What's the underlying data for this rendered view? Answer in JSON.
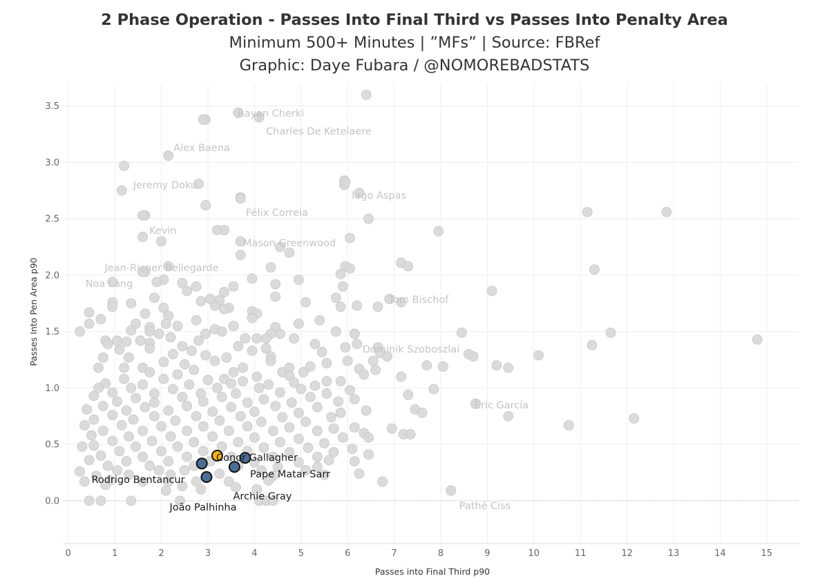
{
  "titles": [
    "2 Phase Operation - Passes Into Final Third vs Passes Into Penalty Area",
    "Minimum 500+ Minutes | ”MFs” | Source: FBRef",
    "Graphic: Daye Fubara / @NOMOREBADSTATS"
  ],
  "colors": {
    "background_point": "#d9d9d9",
    "background_point_stroke": "#c6c6c6",
    "highlight_blue": "#4b6f94",
    "highlight_orange": "#f2b51d",
    "highlight_stroke": "#111111",
    "grid": "#eeeeee"
  },
  "chart_data": {
    "type": "scatter",
    "xlabel": "Passes into Final Third p90",
    "ylabel": "Passes Into Pen Area p90",
    "xlim": [
      -0.1,
      15.7
    ],
    "ylim": [
      -0.38,
      3.7
    ],
    "xticks": [
      0,
      1,
      2,
      3,
      4,
      5,
      6,
      7,
      8,
      9,
      10,
      11,
      12,
      13,
      14,
      15
    ],
    "yticks": [
      0.0,
      0.5,
      1.0,
      1.5,
      2.0,
      2.5,
      3.0,
      3.5
    ],
    "grid": true,
    "labeled_background": [
      {
        "name": "Rayan Cherki",
        "x": 3.65,
        "y": 3.44
      },
      {
        "name": "Charles De Ketelaere",
        "x": 4.1,
        "y": 3.4
      },
      {
        "name": "Alex Baena",
        "x": 2.9,
        "y": 3.38
      },
      {
        "name": "Jeremy Doku",
        "x": 2.15,
        "y": 3.06
      },
      {
        "name": "Iago Aspas",
        "x": 5.95,
        "y": 2.83
      },
      {
        "name": "Félix Correia",
        "x": 3.7,
        "y": 2.68
      },
      {
        "name": "Kevin",
        "x": 1.6,
        "y": 2.53
      },
      {
        "name": "Mason Greenwood",
        "x": 3.2,
        "y": 2.4
      },
      {
        "name": "Jean-Ricner Bellegarde",
        "x": 2.0,
        "y": 2.3
      },
      {
        "name": "Noa Lang",
        "x": 1.6,
        "y": 2.03
      },
      {
        "name": "Tom Bischof",
        "x": 6.9,
        "y": 1.79
      },
      {
        "name": "Dominik Szoboszlai",
        "x": 6.15,
        "y": 1.48
      },
      {
        "name": "Eric García",
        "x": 8.75,
        "y": 0.86
      },
      {
        "name": "Pathé Ciss",
        "x": 8.22,
        "y": 0.09
      }
    ],
    "background_points": [
      [
        6.4,
        3.6
      ],
      [
        3.65,
        3.44
      ],
      [
        4.1,
        3.4
      ],
      [
        2.95,
        3.38
      ],
      [
        2.15,
        3.06
      ],
      [
        1.2,
        2.97
      ],
      [
        2.8,
        2.81
      ],
      [
        5.93,
        2.84
      ],
      [
        5.93,
        2.8
      ],
      [
        6.25,
        2.73
      ],
      [
        1.15,
        2.75
      ],
      [
        3.7,
        2.69
      ],
      [
        2.95,
        2.62
      ],
      [
        1.65,
        2.53
      ],
      [
        6.45,
        2.5
      ],
      [
        11.15,
        2.56
      ],
      [
        12.85,
        2.56
      ],
      [
        7.95,
        2.39
      ],
      [
        3.35,
        2.4
      ],
      [
        1.6,
        2.34
      ],
      [
        6.05,
        2.33
      ],
      [
        3.7,
        2.3
      ],
      [
        4.55,
        2.25
      ],
      [
        4.75,
        2.2
      ],
      [
        3.7,
        2.18
      ],
      [
        7.15,
        2.11
      ],
      [
        7.3,
        2.08
      ],
      [
        5.95,
        2.08
      ],
      [
        6.05,
        2.06
      ],
      [
        4.35,
        2.07
      ],
      [
        2.15,
        2.08
      ],
      [
        11.3,
        2.05
      ],
      [
        1.65,
        2.03
      ],
      [
        5.85,
        2.01
      ],
      [
        3.95,
        1.97
      ],
      [
        4.95,
        1.96
      ],
      [
        2.05,
        1.96
      ],
      [
        1.9,
        1.94
      ],
      [
        0.95,
        1.94
      ],
      [
        2.45,
        1.93
      ],
      [
        2.75,
        1.9
      ],
      [
        3.55,
        1.9
      ],
      [
        4.45,
        1.92
      ],
      [
        5.9,
        1.9
      ],
      [
        9.1,
        1.86
      ],
      [
        3.35,
        1.85
      ],
      [
        2.55,
        1.86
      ],
      [
        1.85,
        1.8
      ],
      [
        3.05,
        1.79
      ],
      [
        2.85,
        1.77
      ],
      [
        3.25,
        1.78
      ],
      [
        4.45,
        1.81
      ],
      [
        5.75,
        1.8
      ],
      [
        6.9,
        1.79
      ],
      [
        7.15,
        1.76
      ],
      [
        3.15,
        1.73
      ],
      [
        3.45,
        1.71
      ],
      [
        5.1,
        1.76
      ],
      [
        6.2,
        1.73
      ],
      [
        6.65,
        1.72
      ],
      [
        1.35,
        1.75
      ],
      [
        0.95,
        1.76
      ],
      [
        2.05,
        1.71
      ],
      [
        3.35,
        1.7
      ],
      [
        3.95,
        1.68
      ],
      [
        4.05,
        1.66
      ],
      [
        5.85,
        1.72
      ],
      [
        0.95,
        1.72
      ],
      [
        0.45,
        1.67
      ],
      [
        1.65,
        1.66
      ],
      [
        2.15,
        1.64
      ],
      [
        3.95,
        1.62
      ],
      [
        0.7,
        1.61
      ],
      [
        5.4,
        1.6
      ],
      [
        2.75,
        1.6
      ],
      [
        4.95,
        1.57
      ],
      [
        1.45,
        1.57
      ],
      [
        2.1,
        1.57
      ],
      [
        2.35,
        1.55
      ],
      [
        3.55,
        1.55
      ],
      [
        0.45,
        1.57
      ],
      [
        1.75,
        1.54
      ],
      [
        4.45,
        1.54
      ],
      [
        3.15,
        1.52
      ],
      [
        1.75,
        1.5
      ],
      [
        1.35,
        1.51
      ],
      [
        0.25,
        1.5
      ],
      [
        1.95,
        1.48
      ],
      [
        2.95,
        1.48
      ],
      [
        3.3,
        1.5
      ],
      [
        4.05,
        1.44
      ],
      [
        4.35,
        1.48
      ],
      [
        4.55,
        1.48
      ],
      [
        5.75,
        1.5
      ],
      [
        6.15,
        1.48
      ],
      [
        2.2,
        1.45
      ],
      [
        1.55,
        1.42
      ],
      [
        0.8,
        1.42
      ],
      [
        1.05,
        1.42
      ],
      [
        0.85,
        1.39
      ],
      [
        1.25,
        1.41
      ],
      [
        1.75,
        1.4
      ],
      [
        2.8,
        1.42
      ],
      [
        3.8,
        1.44
      ],
      [
        4.25,
        1.44
      ],
      [
        4.85,
        1.44
      ],
      [
        5.3,
        1.39
      ],
      [
        6.2,
        1.39
      ],
      [
        8.45,
        1.49
      ],
      [
        11.65,
        1.49
      ],
      [
        14.8,
        1.43
      ],
      [
        11.25,
        1.38
      ],
      [
        6.65,
        1.36
      ],
      [
        5.95,
        1.36
      ],
      [
        3.65,
        1.37
      ],
      [
        2.45,
        1.37
      ],
      [
        1.75,
        1.35
      ],
      [
        1.1,
        1.34
      ],
      [
        2.65,
        1.33
      ],
      [
        3.95,
        1.33
      ],
      [
        4.25,
        1.35
      ],
      [
        5.45,
        1.32
      ],
      [
        6.7,
        1.31
      ],
      [
        8.6,
        1.3
      ],
      [
        8.7,
        1.28
      ],
      [
        6.85,
        1.28
      ],
      [
        6.55,
        1.24
      ],
      [
        2.25,
        1.3
      ],
      [
        2.95,
        1.29
      ],
      [
        3.4,
        1.27
      ],
      [
        4.35,
        1.28
      ],
      [
        1.3,
        1.27
      ],
      [
        0.75,
        1.27
      ],
      [
        2.05,
        1.23
      ],
      [
        3.15,
        1.24
      ],
      [
        4.35,
        1.24
      ],
      [
        5.55,
        1.22
      ],
      [
        6.0,
        1.24
      ],
      [
        7.7,
        1.2
      ],
      [
        8.05,
        1.19
      ],
      [
        9.2,
        1.2
      ],
      [
        9.45,
        1.18
      ],
      [
        10.1,
        1.29
      ],
      [
        2.5,
        1.21
      ],
      [
        3.75,
        1.18
      ],
      [
        4.75,
        1.18
      ],
      [
        5.2,
        1.19
      ],
      [
        6.25,
        1.17
      ],
      [
        6.6,
        1.16
      ],
      [
        0.65,
        1.18
      ],
      [
        1.2,
        1.18
      ],
      [
        1.6,
        1.18
      ],
      [
        2.7,
        1.16
      ],
      [
        3.55,
        1.14
      ],
      [
        4.6,
        1.14
      ],
      [
        5.05,
        1.14
      ],
      [
        6.35,
        1.12
      ],
      [
        7.15,
        1.1
      ],
      [
        1.75,
        1.14
      ],
      [
        2.35,
        1.12
      ],
      [
        3.35,
        1.08
      ],
      [
        4.05,
        1.1
      ],
      [
        4.75,
        1.11
      ],
      [
        5.55,
        1.06
      ],
      [
        1.2,
        1.08
      ],
      [
        2.05,
        1.08
      ],
      [
        3.0,
        1.07
      ],
      [
        3.75,
        1.06
      ],
      [
        4.85,
        1.05
      ],
      [
        5.85,
        1.06
      ],
      [
        0.8,
        1.04
      ],
      [
        1.6,
        1.03
      ],
      [
        2.6,
        1.03
      ],
      [
        3.5,
        1.04
      ],
      [
        4.3,
        1.03
      ],
      [
        5.3,
        1.02
      ],
      [
        7.85,
        0.99
      ],
      [
        0.65,
        1.0
      ],
      [
        1.35,
        1.0
      ],
      [
        2.25,
        0.99
      ],
      [
        3.2,
        1.0
      ],
      [
        4.1,
        1.0
      ],
      [
        5.0,
        0.99
      ],
      [
        6.05,
        0.98
      ],
      [
        0.95,
        0.96
      ],
      [
        1.85,
        0.95
      ],
      [
        2.85,
        0.95
      ],
      [
        3.6,
        0.95
      ],
      [
        4.55,
        0.96
      ],
      [
        5.55,
        0.95
      ],
      [
        7.3,
        0.94
      ],
      [
        0.55,
        0.93
      ],
      [
        1.45,
        0.91
      ],
      [
        2.45,
        0.92
      ],
      [
        3.3,
        0.92
      ],
      [
        4.2,
        0.9
      ],
      [
        5.2,
        0.92
      ],
      [
        6.15,
        0.9
      ],
      [
        1.05,
        0.88
      ],
      [
        1.85,
        0.87
      ],
      [
        2.9,
        0.88
      ],
      [
        3.85,
        0.87
      ],
      [
        4.8,
        0.87
      ],
      [
        5.8,
        0.88
      ],
      [
        8.75,
        0.86
      ],
      [
        0.75,
        0.84
      ],
      [
        1.65,
        0.83
      ],
      [
        2.55,
        0.84
      ],
      [
        3.5,
        0.83
      ],
      [
        4.45,
        0.84
      ],
      [
        5.35,
        0.83
      ],
      [
        6.4,
        0.8
      ],
      [
        7.45,
        0.81
      ],
      [
        7.6,
        0.78
      ],
      [
        0.4,
        0.81
      ],
      [
        1.25,
        0.8
      ],
      [
        2.15,
        0.8
      ],
      [
        3.1,
        0.79
      ],
      [
        4.0,
        0.79
      ],
      [
        4.95,
        0.78
      ],
      [
        5.85,
        0.78
      ],
      [
        9.45,
        0.75
      ],
      [
        0.95,
        0.76
      ],
      [
        1.85,
        0.75
      ],
      [
        2.75,
        0.75
      ],
      [
        3.7,
        0.75
      ],
      [
        4.6,
        0.74
      ],
      [
        5.65,
        0.74
      ],
      [
        0.55,
        0.72
      ],
      [
        1.4,
        0.72
      ],
      [
        2.3,
        0.71
      ],
      [
        3.25,
        0.71
      ],
      [
        4.15,
        0.7
      ],
      [
        5.1,
        0.7
      ],
      [
        12.15,
        0.73
      ],
      [
        10.75,
        0.67
      ],
      [
        6.95,
        0.64
      ],
      [
        6.15,
        0.65
      ],
      [
        0.35,
        0.67
      ],
      [
        1.15,
        0.67
      ],
      [
        2.0,
        0.66
      ],
      [
        2.9,
        0.66
      ],
      [
        3.85,
        0.66
      ],
      [
        4.75,
        0.65
      ],
      [
        5.7,
        0.64
      ],
      [
        0.75,
        0.62
      ],
      [
        1.6,
        0.62
      ],
      [
        2.55,
        0.62
      ],
      [
        3.45,
        0.62
      ],
      [
        4.4,
        0.62
      ],
      [
        5.35,
        0.62
      ],
      [
        6.35,
        0.6
      ],
      [
        7.2,
        0.59
      ],
      [
        7.35,
        0.59
      ],
      [
        0.5,
        0.58
      ],
      [
        1.3,
        0.57
      ],
      [
        2.2,
        0.57
      ],
      [
        3.1,
        0.57
      ],
      [
        4.0,
        0.56
      ],
      [
        4.95,
        0.55
      ],
      [
        5.9,
        0.56
      ],
      [
        6.45,
        0.56
      ],
      [
        0.95,
        0.53
      ],
      [
        1.8,
        0.53
      ],
      [
        2.7,
        0.52
      ],
      [
        3.65,
        0.52
      ],
      [
        4.55,
        0.52
      ],
      [
        5.5,
        0.51
      ],
      [
        0.55,
        0.49
      ],
      [
        1.45,
        0.48
      ],
      [
        2.35,
        0.48
      ],
      [
        3.3,
        0.48
      ],
      [
        4.2,
        0.47
      ],
      [
        5.15,
        0.47
      ],
      [
        6.1,
        0.46
      ],
      [
        0.3,
        0.48
      ],
      [
        1.1,
        0.44
      ],
      [
        2.0,
        0.44
      ],
      [
        2.9,
        0.44
      ],
      [
        3.85,
        0.44
      ],
      [
        4.75,
        0.43
      ],
      [
        5.7,
        0.43
      ],
      [
        0.7,
        0.4
      ],
      [
        1.6,
        0.39
      ],
      [
        2.55,
        0.39
      ],
      [
        3.5,
        0.39
      ],
      [
        4.4,
        0.39
      ],
      [
        5.35,
        0.39
      ],
      [
        6.45,
        0.41
      ],
      [
        0.45,
        0.36
      ],
      [
        1.25,
        0.35
      ],
      [
        2.15,
        0.35
      ],
      [
        3.05,
        0.35
      ],
      [
        4.0,
        0.34
      ],
      [
        4.95,
        0.34
      ],
      [
        5.6,
        0.36
      ],
      [
        6.15,
        0.35
      ],
      [
        0.85,
        0.31
      ],
      [
        1.75,
        0.31
      ],
      [
        2.7,
        0.31
      ],
      [
        3.65,
        0.31
      ],
      [
        4.5,
        0.3
      ],
      [
        5.35,
        0.3
      ],
      [
        0.25,
        0.26
      ],
      [
        1.05,
        0.27
      ],
      [
        1.95,
        0.27
      ],
      [
        2.5,
        0.27
      ],
      [
        4.15,
        0.27
      ],
      [
        5.1,
        0.27
      ],
      [
        5.5,
        0.23
      ],
      [
        6.25,
        0.24
      ],
      [
        0.6,
        0.22
      ],
      [
        1.3,
        0.23
      ],
      [
        2.2,
        0.23
      ],
      [
        3.25,
        0.24
      ],
      [
        4.4,
        0.22
      ],
      [
        0.35,
        0.17
      ],
      [
        0.9,
        0.18
      ],
      [
        1.6,
        0.17
      ],
      [
        2.15,
        0.17
      ],
      [
        2.75,
        0.17
      ],
      [
        3.45,
        0.17
      ],
      [
        4.3,
        0.18
      ],
      [
        6.75,
        0.17
      ],
      [
        0.8,
        0.14
      ],
      [
        2.45,
        0.13
      ],
      [
        3.6,
        0.12
      ],
      [
        4.05,
        0.1
      ],
      [
        8.22,
        0.09
      ],
      [
        2.1,
        0.09
      ],
      [
        2.85,
        0.1
      ],
      [
        0.45,
        0.0
      ],
      [
        0.7,
        0.0
      ],
      [
        1.35,
        0.0
      ],
      [
        2.4,
        0.0
      ],
      [
        4.1,
        0.0
      ],
      [
        4.25,
        0.0
      ],
      [
        4.4,
        0.0
      ]
    ],
    "highlights": [
      {
        "name": "Conor Gallagher",
        "x": 3.2,
        "y": 0.4,
        "color": "orange"
      },
      {
        "name": "Pape Matar Sarr",
        "x": 3.8,
        "y": 0.38,
        "color": "blue"
      },
      {
        "name": "Rodrigo Bentancur",
        "x": 2.87,
        "y": 0.33,
        "color": "blue"
      },
      {
        "name": "Archie Gray",
        "x": 3.57,
        "y": 0.3,
        "color": "blue"
      },
      {
        "name": "João Palhinha",
        "x": 2.97,
        "y": 0.21,
        "color": "blue"
      }
    ]
  }
}
